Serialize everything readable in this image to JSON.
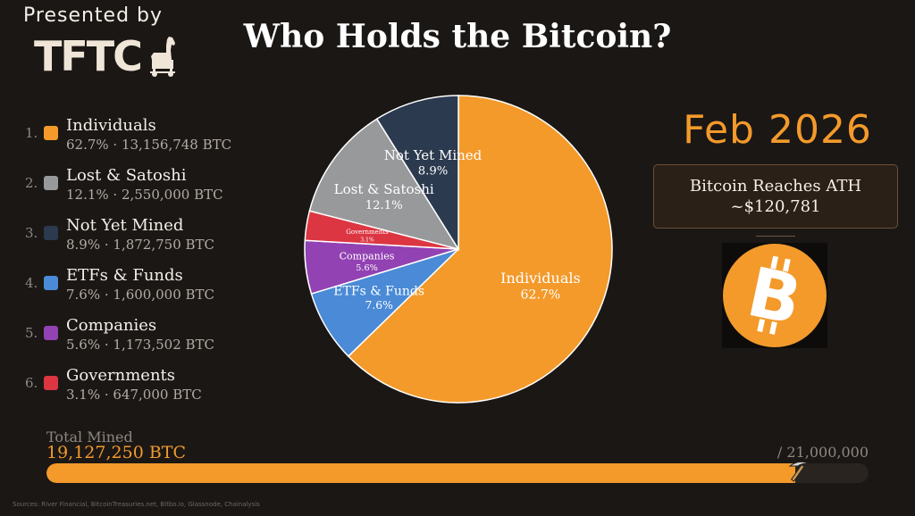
{
  "header": {
    "presented_by": "Presented by",
    "logo_text": "TFTC",
    "title": "Who Holds the Bitcoin?"
  },
  "legend": [
    {
      "num": "1.",
      "label": "Individuals",
      "value": "62.7% · 13,156,748 BTC",
      "color": "#f39a2b"
    },
    {
      "num": "2.",
      "label": "Lost & Satoshi",
      "value": "12.1% · 2,550,000 BTC",
      "color": "#98999b"
    },
    {
      "num": "3.",
      "label": "Not Yet Mined",
      "value": "8.9% · 1,872,750 BTC",
      "color": "#2c3a4f"
    },
    {
      "num": "4.",
      "label": "ETFs & Funds",
      "value": "7.6% · 1,600,000 BTC",
      "color": "#4a8ad6"
    },
    {
      "num": "5.",
      "label": "Companies",
      "value": "5.6% · 1,173,502 BTC",
      "color": "#9242b3"
    },
    {
      "num": "6.",
      "label": "Governments",
      "value": "3.1% · 647,000 BTC",
      "color": "#dc3642"
    }
  ],
  "chart_data": {
    "type": "pie",
    "slices": [
      {
        "name": "Individuals",
        "value": 62.7,
        "btc": 13156748,
        "label_pct": "62.7%",
        "color": "#f39a2b"
      },
      {
        "name": "ETFs & Funds",
        "value": 7.6,
        "btc": 1600000,
        "label_pct": "7.6%",
        "color": "#4a8ad6"
      },
      {
        "name": "Companies",
        "value": 5.6,
        "btc": 1173502,
        "label_pct": "5.6%",
        "color": "#9242b3"
      },
      {
        "name": "Governments",
        "value": 3.1,
        "btc": 647000,
        "label_pct": "3.1%",
        "color": "#dc3642"
      },
      {
        "name": "Lost & Satoshi",
        "value": 12.1,
        "btc": 2550000,
        "label_pct": "12.1%",
        "color": "#98999b"
      },
      {
        "name": "Not Yet Mined",
        "value": 8.9,
        "btc": 1872750,
        "label_pct": "8.9%",
        "color": "#2c3a4f"
      }
    ],
    "start_angle_deg": 0,
    "direction": "clockwise",
    "title": "Who Holds the Bitcoin?"
  },
  "event": {
    "date": "Feb 2026",
    "line1": "Bitcoin Reaches ATH",
    "line2": "~$120,781",
    "coin_symbol": "bitcoin-icon"
  },
  "progress": {
    "label": "Total Mined",
    "value_text": "19,127,250 BTC",
    "max_text": "/ 21,000,000",
    "mined": 19127250,
    "max": 21000000,
    "fill_color": "#f39a2b",
    "icon": "pickaxe-icon"
  },
  "footer": {
    "sources": "Sources: River Financial, BitcoinTreasuries.net, Bitbo.io, Glassnode, Chainalysis"
  }
}
